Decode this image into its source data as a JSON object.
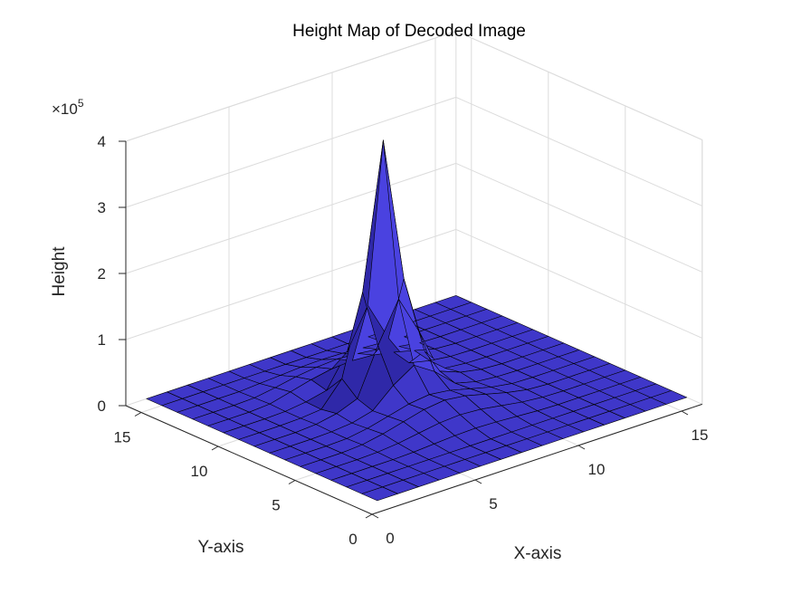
{
  "chart_data": {
    "type": "surface",
    "title": "Height Map of Decoded Image",
    "xlabel": "X-axis",
    "ylabel": "Y-axis",
    "zlabel": "Height",
    "z_exponent_label": "×10",
    "z_exponent": "5",
    "xlim": [
      0,
      16
    ],
    "ylim": [
      0,
      16
    ],
    "zlim": [
      0,
      400000
    ],
    "x_ticks": [
      0,
      5,
      10,
      15
    ],
    "y_ticks": [
      0,
      5,
      10,
      15
    ],
    "z_ticks": [
      0,
      100000,
      200000,
      300000,
      400000
    ],
    "z_tick_labels": [
      "0",
      "1",
      "2",
      "3",
      "4"
    ],
    "grid": true,
    "surface_color": "#3f37c9",
    "edge_color": "#000000",
    "x": [
      1,
      2,
      3,
      4,
      5,
      6,
      7,
      8,
      9,
      10,
      11,
      12,
      13,
      14,
      15,
      16
    ],
    "y": [
      1,
      2,
      3,
      4,
      5,
      6,
      7,
      8,
      9,
      10,
      11,
      12,
      13,
      14,
      15,
      16
    ],
    "z_rows_by_y": [
      [
        0,
        0,
        0,
        0,
        0,
        0,
        0,
        0,
        0,
        0,
        0,
        0,
        0,
        0,
        0,
        0
      ],
      [
        0,
        0,
        0,
        0,
        0,
        0,
        0,
        0,
        0,
        0,
        0,
        0,
        0,
        0,
        0,
        0
      ],
      [
        0,
        0,
        0,
        0,
        0,
        0,
        0,
        0,
        0,
        0,
        0,
        0,
        0,
        0,
        0,
        0
      ],
      [
        0,
        0,
        0,
        0,
        1000,
        3000,
        5000,
        6000,
        5000,
        3000,
        1000,
        0,
        0,
        0,
        0,
        0
      ],
      [
        0,
        0,
        0,
        1000,
        4000,
        9000,
        14000,
        16000,
        14000,
        9000,
        4000,
        1000,
        0,
        0,
        0,
        0
      ],
      [
        0,
        0,
        0,
        2000,
        8000,
        16000,
        24000,
        28000,
        24000,
        16000,
        8000,
        2000,
        0,
        0,
        0,
        0
      ],
      [
        0,
        0,
        0,
        1000,
        6000,
        14000,
        22000,
        26000,
        22000,
        14000,
        6000,
        1000,
        0,
        0,
        0,
        0
      ],
      [
        0,
        0,
        0,
        1000,
        4000,
        12000,
        40000,
        60000,
        40000,
        12000,
        4000,
        1000,
        0,
        0,
        0,
        0
      ],
      [
        0,
        0,
        0,
        2000,
        8000,
        20000,
        90000,
        150000,
        90000,
        20000,
        8000,
        2000,
        0,
        0,
        0,
        0
      ],
      [
        0,
        0,
        0,
        1000,
        4000,
        40000,
        160000,
        380000,
        160000,
        40000,
        4000,
        1000,
        0,
        0,
        0,
        0
      ],
      [
        0,
        0,
        0,
        1000,
        5000,
        12000,
        60000,
        120000,
        60000,
        12000,
        5000,
        1000,
        0,
        0,
        0,
        0
      ],
      [
        0,
        0,
        0,
        2000,
        10000,
        18000,
        24000,
        26000,
        24000,
        18000,
        10000,
        2000,
        0,
        0,
        0,
        0
      ],
      [
        0,
        0,
        0,
        1000,
        6000,
        12000,
        16000,
        18000,
        16000,
        12000,
        6000,
        1000,
        0,
        0,
        0,
        0
      ],
      [
        0,
        0,
        0,
        0,
        2000,
        4000,
        6000,
        7000,
        6000,
        4000,
        2000,
        0,
        0,
        0,
        0,
        0
      ],
      [
        0,
        0,
        0,
        0,
        0,
        0,
        0,
        0,
        0,
        0,
        0,
        0,
        0,
        0,
        0,
        0
      ],
      [
        0,
        0,
        0,
        0,
        0,
        0,
        0,
        0,
        0,
        0,
        0,
        0,
        0,
        0,
        0,
        0
      ]
    ]
  }
}
